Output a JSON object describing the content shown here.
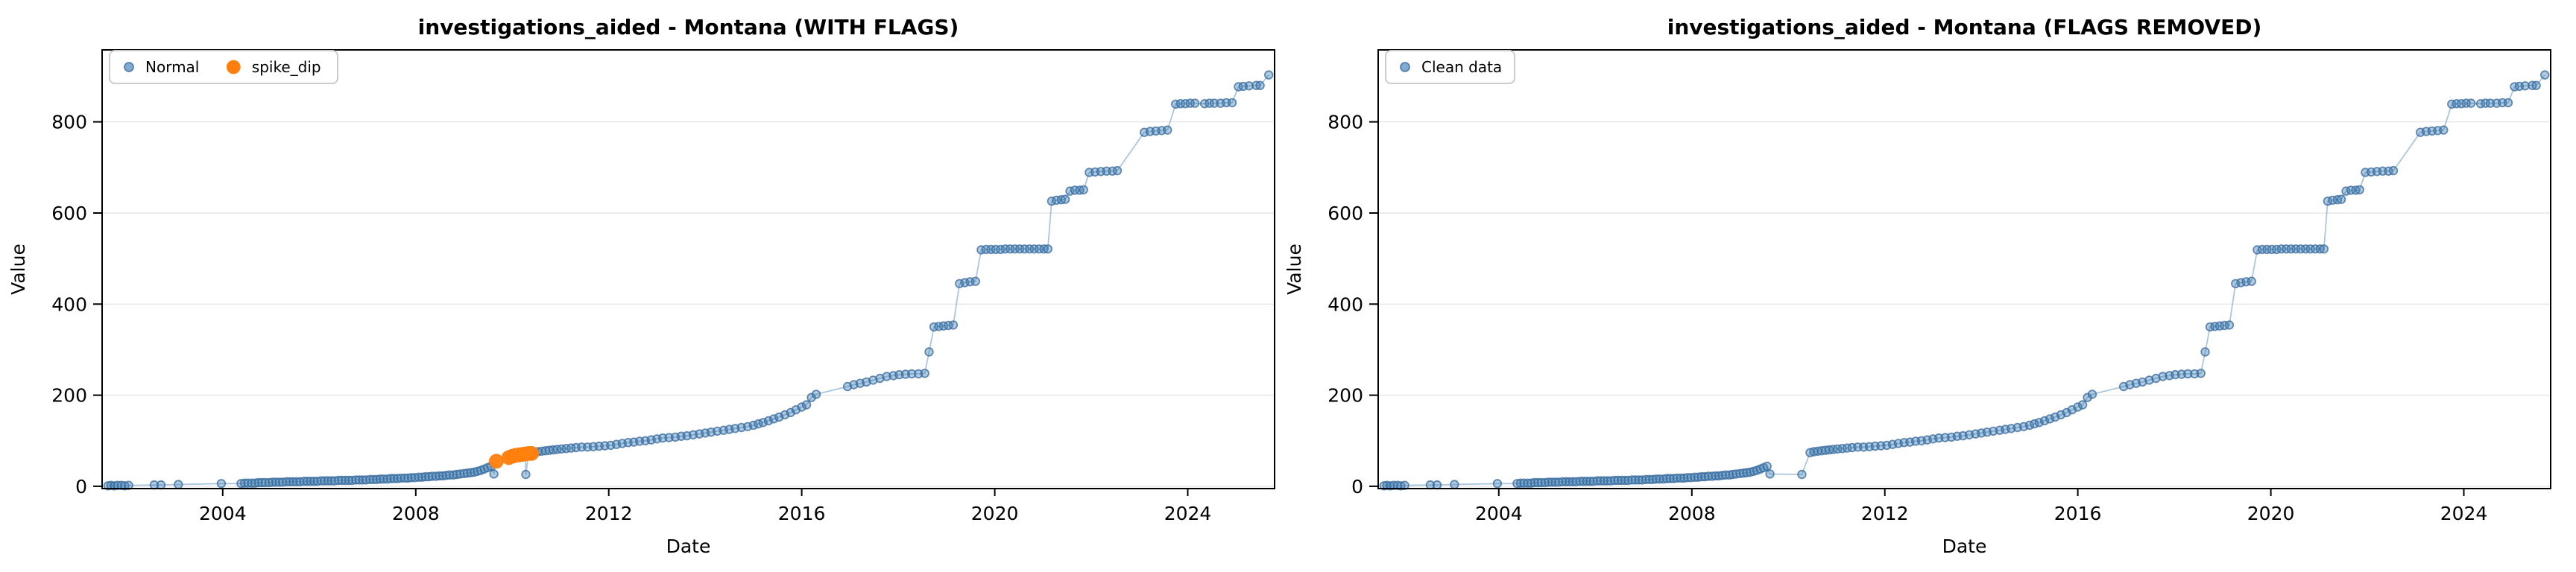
{
  "figure": {
    "kind": "matplotlib-dual-scatter",
    "background": "#ffffff"
  },
  "chart_data": {
    "type": "scatter",
    "xlabel": "Date",
    "ylabel": "Value",
    "xlim": [
      2001.5,
      2025.8
    ],
    "ylim": [
      -5,
      958
    ],
    "xticks": [
      2004,
      2008,
      2012,
      2016,
      2020,
      2024
    ],
    "yticks": [
      0,
      200,
      400,
      600,
      800
    ],
    "grid": "horizontal-only",
    "legend_position": "upper-left",
    "colors": {
      "normal_fill": "#4682b4",
      "normal_edge": "#35689c",
      "flag_fill": "#ff7f0e",
      "line": "#4682b4",
      "grid": "#e6e6e6",
      "spine": "#000000"
    },
    "charts": [
      {
        "id": "with-flags",
        "title": "investigations_aided - Montana (WITH FLAGS)",
        "series": [
          {
            "name": "Normal",
            "points": "points_clean",
            "color": "#4682b4",
            "edge": "#35689c",
            "r": 5.3,
            "legend_r": 6,
            "fill_opacity": 0.42,
            "edge_opacity": 0.75
          },
          {
            "name": "spike_dip",
            "points": "points_spike_dip",
            "color": "#ff7f0e",
            "edge": "#ff7f0e",
            "r": 9,
            "legend_r": 8.5,
            "fill_opacity": 0.95,
            "edge_opacity": 0.95
          }
        ]
      },
      {
        "id": "flags-removed",
        "title": "investigations_aided - Montana (FLAGS REMOVED)",
        "series": [
          {
            "name": "Clean data",
            "points": "points_clean",
            "color": "#4682b4",
            "edge": "#35689c",
            "r": 5.3,
            "legend_r": 6,
            "fill_opacity": 0.42,
            "edge_opacity": 0.75
          }
        ]
      }
    ],
    "points_clean": [
      [
        2001.62,
        1
      ],
      [
        2001.68,
        2
      ],
      [
        2001.75,
        1
      ],
      [
        2001.82,
        2
      ],
      [
        2001.9,
        2
      ],
      [
        2001.97,
        1
      ],
      [
        2002.05,
        2
      ],
      [
        2002.58,
        3
      ],
      [
        2002.72,
        3
      ],
      [
        2003.08,
        4
      ],
      [
        2003.97,
        6
      ],
      [
        2004.38,
        6
      ],
      [
        2004.45,
        7
      ],
      [
        2004.52,
        7
      ],
      [
        2004.6,
        7
      ],
      [
        2004.67,
        7
      ],
      [
        2004.74,
        8
      ],
      [
        2004.81,
        8
      ],
      [
        2004.88,
        8
      ],
      [
        2004.96,
        8
      ],
      [
        2005.03,
        9
      ],
      [
        2005.1,
        9
      ],
      [
        2005.17,
        9
      ],
      [
        2005.24,
        9
      ],
      [
        2005.32,
        10
      ],
      [
        2005.39,
        10
      ],
      [
        2005.46,
        10
      ],
      [
        2005.53,
        10
      ],
      [
        2005.6,
        10
      ],
      [
        2005.68,
        11
      ],
      [
        2005.75,
        11
      ],
      [
        2005.82,
        11
      ],
      [
        2005.89,
        11
      ],
      [
        2005.96,
        11
      ],
      [
        2006.04,
        12
      ],
      [
        2006.11,
        12
      ],
      [
        2006.18,
        12
      ],
      [
        2006.25,
        12
      ],
      [
        2006.32,
        12
      ],
      [
        2006.4,
        13
      ],
      [
        2006.47,
        13
      ],
      [
        2006.54,
        13
      ],
      [
        2006.61,
        13
      ],
      [
        2006.68,
        13
      ],
      [
        2006.76,
        14
      ],
      [
        2006.83,
        14
      ],
      [
        2006.9,
        14
      ],
      [
        2006.97,
        14
      ],
      [
        2007.05,
        15
      ],
      [
        2007.12,
        15
      ],
      [
        2007.19,
        15
      ],
      [
        2007.26,
        16
      ],
      [
        2007.33,
        16
      ],
      [
        2007.41,
        16
      ],
      [
        2007.48,
        17
      ],
      [
        2007.55,
        17
      ],
      [
        2007.62,
        17
      ],
      [
        2007.69,
        18
      ],
      [
        2007.77,
        18
      ],
      [
        2007.84,
        18
      ],
      [
        2007.91,
        19
      ],
      [
        2007.98,
        19
      ],
      [
        2008.06,
        20
      ],
      [
        2008.13,
        20
      ],
      [
        2008.2,
        21
      ],
      [
        2008.27,
        21
      ],
      [
        2008.34,
        22
      ],
      [
        2008.42,
        22
      ],
      [
        2008.49,
        23
      ],
      [
        2008.56,
        23
      ],
      [
        2008.63,
        24
      ],
      [
        2008.7,
        25
      ],
      [
        2008.78,
        25
      ],
      [
        2008.85,
        26
      ],
      [
        2008.92,
        27
      ],
      [
        2009,
        28
      ],
      [
        2009.07,
        29
      ],
      [
        2009.14,
        30
      ],
      [
        2009.21,
        31
      ],
      [
        2009.28,
        33
      ],
      [
        2009.35,
        35
      ],
      [
        2009.42,
        38
      ],
      [
        2009.49,
        41
      ],
      [
        2009.56,
        44
      ],
      [
        2009.62,
        27
      ],
      [
        2010.28,
        26
      ],
      [
        2010.45,
        74
      ],
      [
        2010.53,
        76
      ],
      [
        2010.61,
        77
      ],
      [
        2010.69,
        78
      ],
      [
        2010.77,
        79
      ],
      [
        2010.85,
        80
      ],
      [
        2010.93,
        81
      ],
      [
        2011.02,
        82
      ],
      [
        2011.12,
        83
      ],
      [
        2011.22,
        84
      ],
      [
        2011.32,
        85
      ],
      [
        2011.44,
        86
      ],
      [
        2011.56,
        86
      ],
      [
        2011.68,
        87
      ],
      [
        2011.8,
        88
      ],
      [
        2011.92,
        89
      ],
      [
        2012.04,
        90
      ],
      [
        2012.16,
        92
      ],
      [
        2012.28,
        94
      ],
      [
        2012.4,
        96
      ],
      [
        2012.52,
        97
      ],
      [
        2012.64,
        99
      ],
      [
        2012.76,
        100
      ],
      [
        2012.88,
        102
      ],
      [
        2013,
        104
      ],
      [
        2013.12,
        106
      ],
      [
        2013.25,
        107
      ],
      [
        2013.38,
        108
      ],
      [
        2013.5,
        110
      ],
      [
        2013.62,
        111
      ],
      [
        2013.75,
        113
      ],
      [
        2013.88,
        115
      ],
      [
        2014,
        117
      ],
      [
        2014.12,
        119
      ],
      [
        2014.25,
        121
      ],
      [
        2014.38,
        123
      ],
      [
        2014.5,
        125
      ],
      [
        2014.62,
        127
      ],
      [
        2014.75,
        129
      ],
      [
        2014.88,
        131
      ],
      [
        2015,
        134
      ],
      [
        2015.1,
        137
      ],
      [
        2015.2,
        140
      ],
      [
        2015.31,
        144
      ],
      [
        2015.42,
        148
      ],
      [
        2015.53,
        152
      ],
      [
        2015.65,
        157
      ],
      [
        2015.77,
        162
      ],
      [
        2015.88,
        168
      ],
      [
        2016,
        174
      ],
      [
        2016.1,
        179
      ],
      [
        2016.2,
        195
      ],
      [
        2016.3,
        202
      ],
      [
        2016.95,
        219
      ],
      [
        2017.08,
        223
      ],
      [
        2017.21,
        226
      ],
      [
        2017.34,
        229
      ],
      [
        2017.48,
        233
      ],
      [
        2017.62,
        237
      ],
      [
        2017.76,
        241
      ],
      [
        2017.9,
        243
      ],
      [
        2018.02,
        245
      ],
      [
        2018.15,
        246
      ],
      [
        2018.28,
        247
      ],
      [
        2018.42,
        247
      ],
      [
        2018.55,
        248
      ],
      [
        2018.64,
        295
      ],
      [
        2018.74,
        350
      ],
      [
        2018.84,
        351
      ],
      [
        2018.94,
        352
      ],
      [
        2019.04,
        353
      ],
      [
        2019.14,
        354
      ],
      [
        2019.27,
        445
      ],
      [
        2019.38,
        447
      ],
      [
        2019.49,
        449
      ],
      [
        2019.6,
        450
      ],
      [
        2019.72,
        519
      ],
      [
        2019.82,
        520
      ],
      [
        2019.92,
        520
      ],
      [
        2020.02,
        520
      ],
      [
        2020.12,
        520
      ],
      [
        2020.22,
        521
      ],
      [
        2020.32,
        521
      ],
      [
        2020.42,
        521
      ],
      [
        2020.52,
        521
      ],
      [
        2020.62,
        521
      ],
      [
        2020.72,
        521
      ],
      [
        2020.82,
        521
      ],
      [
        2020.92,
        521
      ],
      [
        2021.02,
        521
      ],
      [
        2021.1,
        521
      ],
      [
        2021.18,
        626
      ],
      [
        2021.28,
        628
      ],
      [
        2021.38,
        629
      ],
      [
        2021.46,
        630
      ],
      [
        2021.56,
        648
      ],
      [
        2021.66,
        650
      ],
      [
        2021.76,
        650
      ],
      [
        2021.84,
        651
      ],
      [
        2021.96,
        689
      ],
      [
        2022.08,
        690
      ],
      [
        2022.2,
        691
      ],
      [
        2022.32,
        692
      ],
      [
        2022.44,
        692
      ],
      [
        2022.54,
        693
      ],
      [
        2023.1,
        777
      ],
      [
        2023.22,
        779
      ],
      [
        2023.34,
        780
      ],
      [
        2023.46,
        781
      ],
      [
        2023.58,
        782
      ],
      [
        2023.75,
        839
      ],
      [
        2023.85,
        840
      ],
      [
        2023.95,
        840
      ],
      [
        2024.05,
        841
      ],
      [
        2024.15,
        841
      ],
      [
        2024.35,
        840
      ],
      [
        2024.45,
        841
      ],
      [
        2024.55,
        841
      ],
      [
        2024.68,
        841
      ],
      [
        2024.8,
        842
      ],
      [
        2024.92,
        842
      ],
      [
        2025.05,
        877
      ],
      [
        2025.15,
        878
      ],
      [
        2025.27,
        879
      ],
      [
        2025.42,
        880
      ],
      [
        2025.5,
        880
      ],
      [
        2025.68,
        903
      ]
    ],
    "points_spike_dip": [
      [
        2009.67,
        55
      ],
      [
        2009.93,
        63
      ],
      [
        2010,
        66
      ],
      [
        2010.07,
        68
      ],
      [
        2010.14,
        69
      ],
      [
        2010.21,
        70
      ],
      [
        2010.27,
        71
      ],
      [
        2010.34,
        72
      ],
      [
        2010.4,
        72
      ]
    ]
  }
}
